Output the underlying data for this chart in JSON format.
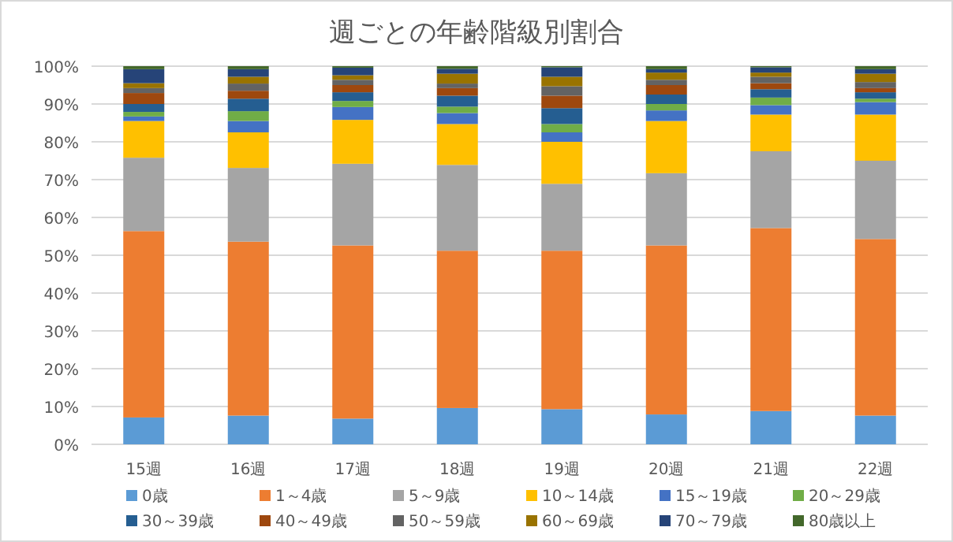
{
  "chart_data": {
    "type": "bar",
    "title": "週ごとの年齢階級別割合",
    "stacked": true,
    "grid": "y",
    "legend": "bottom",
    "categories": [
      "15週",
      "16週",
      "17週",
      "18週",
      "19週",
      "20週",
      "21週",
      "22週"
    ],
    "ylim": [
      0,
      100
    ],
    "yticks": [
      {
        "value": 0,
        "label": "0%"
      },
      {
        "value": 10,
        "label": "10%"
      },
      {
        "value": 20,
        "label": "20%"
      },
      {
        "value": 30,
        "label": "30%"
      },
      {
        "value": 40,
        "label": "40%"
      },
      {
        "value": 50,
        "label": "50%"
      },
      {
        "value": 60,
        "label": "60%"
      },
      {
        "value": 70,
        "label": "70%"
      },
      {
        "value": 80,
        "label": "80%"
      },
      {
        "value": 90,
        "label": "90%"
      },
      {
        "value": 100,
        "label": "100%"
      }
    ],
    "series": [
      {
        "name": "0歳",
        "color": "#5b9bd5",
        "values": [
          7.1,
          7.6,
          6.8,
          9.6,
          9.3,
          7.9,
          8.8,
          7.6
        ]
      },
      {
        "name": "1～4歳",
        "color": "#ed7d31",
        "values": [
          49.3,
          46.0,
          45.8,
          41.6,
          41.9,
          44.7,
          48.4,
          46.7
        ]
      },
      {
        "name": "5～9歳",
        "color": "#a5a5a5",
        "values": [
          19.4,
          19.5,
          21.6,
          22.7,
          17.7,
          19.1,
          20.3,
          20.7
        ]
      },
      {
        "name": "10～14歳",
        "color": "#ffc000",
        "values": [
          9.7,
          9.4,
          11.6,
          10.8,
          11.1,
          13.8,
          9.7,
          12.2
        ]
      },
      {
        "name": "15～19歳",
        "color": "#4472c4",
        "values": [
          1.2,
          3.0,
          3.4,
          2.9,
          2.5,
          2.8,
          2.5,
          3.3
        ]
      },
      {
        "name": "20～29歳",
        "color": "#70ad47",
        "values": [
          1.2,
          2.6,
          1.6,
          1.7,
          2.2,
          1.7,
          2.0,
          0.9
        ]
      },
      {
        "name": "30～39歳",
        "color": "#255e91",
        "values": [
          2.1,
          3.3,
          2.3,
          2.9,
          4.2,
          2.5,
          2.2,
          1.7
        ]
      },
      {
        "name": "40～49歳",
        "color": "#9e480e",
        "values": [
          2.9,
          2.1,
          1.9,
          2.0,
          3.3,
          2.5,
          1.6,
          1.1
        ]
      },
      {
        "name": "50～59歳",
        "color": "#636363",
        "values": [
          1.3,
          1.9,
          1.4,
          1.2,
          2.5,
          1.4,
          1.7,
          1.6
        ]
      },
      {
        "name": "60～69歳",
        "color": "#997300",
        "values": [
          1.3,
          1.8,
          1.2,
          2.6,
          2.5,
          1.9,
          1.1,
          2.2
        ]
      },
      {
        "name": "70～79歳",
        "color": "#264478",
        "values": [
          3.7,
          2.0,
          2.0,
          1.3,
          2.5,
          0.9,
          1.4,
          1.2
        ]
      },
      {
        "name": "80歳以上",
        "color": "#43682b",
        "values": [
          0.8,
          0.8,
          0.4,
          0.7,
          0.3,
          0.8,
          0.3,
          0.8
        ]
      }
    ]
  }
}
